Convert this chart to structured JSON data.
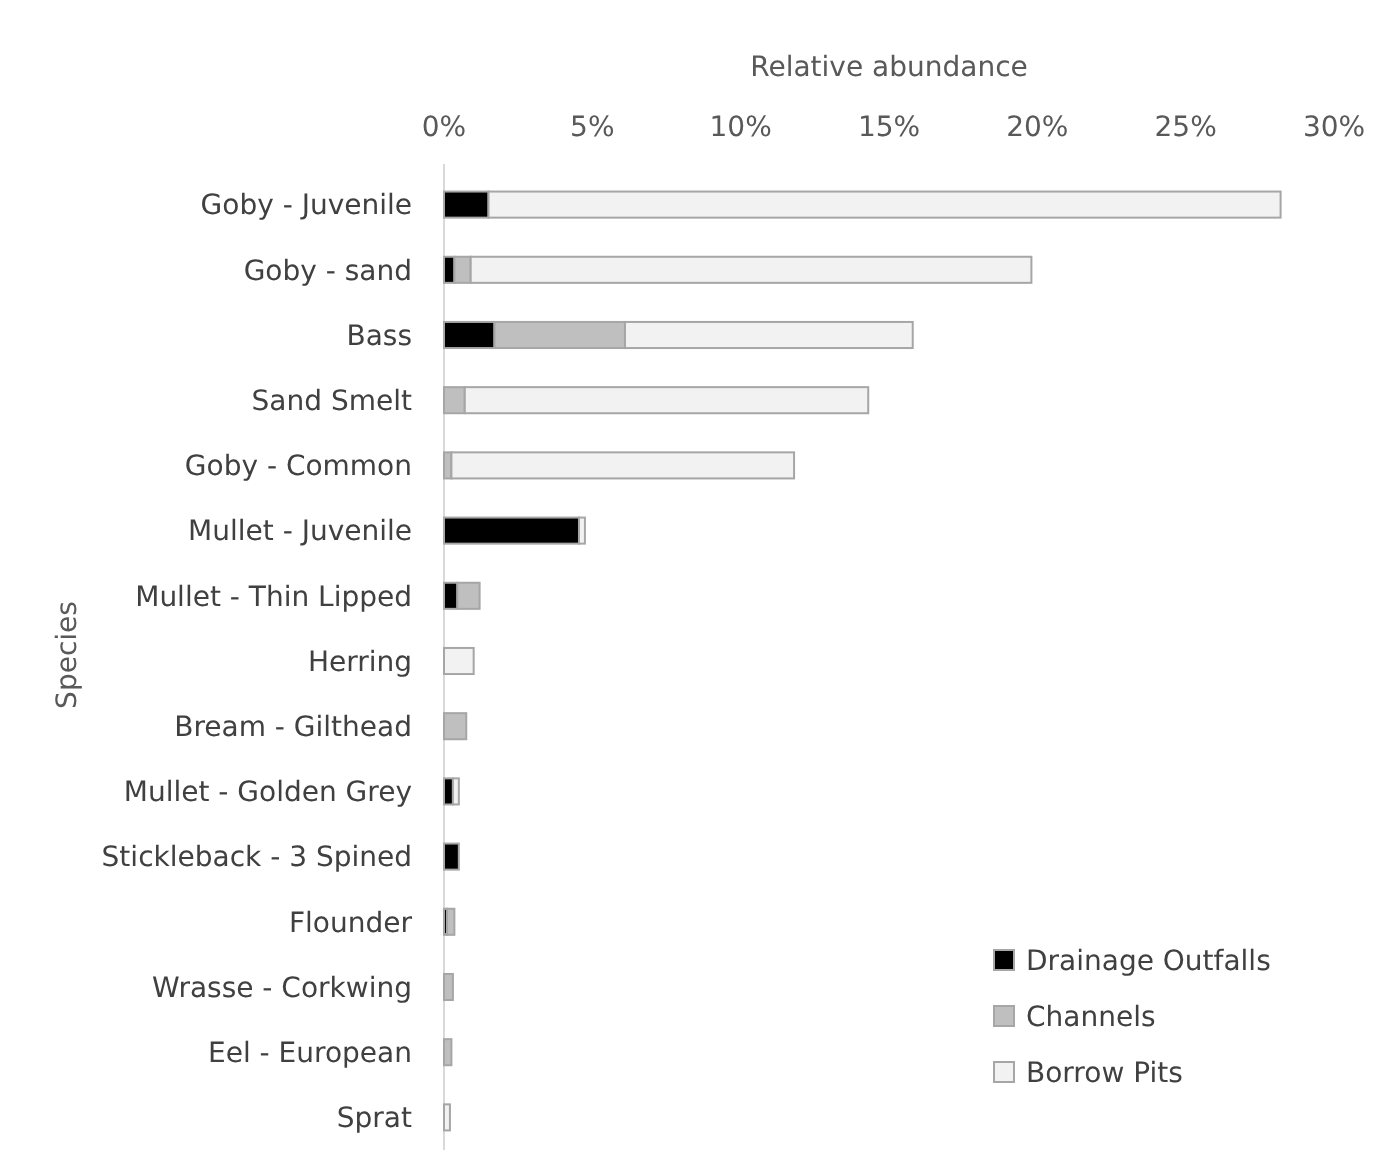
{
  "chart_data": {
    "type": "bar",
    "orientation": "horizontal",
    "stacked": true,
    "xlabel": "Relative abundance",
    "ylabel": "Species",
    "categories": [
      "Goby - Juvenile",
      "Goby - sand",
      "Bass",
      "Sand Smelt",
      "Goby - Common",
      "Mullet - Juvenile",
      "Mullet - Thin Lipped",
      "Herring",
      "Bream - Gilthead",
      "Mullet - Golden Grey",
      "Stickleback - 3 Spined",
      "Flounder",
      "Wrasse - Corkwing",
      "Eel - European",
      "Sprat"
    ],
    "series": [
      {
        "name": "Drainage Outfalls",
        "color": "#000000",
        "values": [
          1.5,
          0.35,
          1.7,
          0,
          0,
          4.55,
          0.45,
          0,
          0,
          0.3,
          0.5,
          0.1,
          0,
          0,
          0
        ]
      },
      {
        "name": "Channels",
        "color": "#bfbfbf",
        "values": [
          0,
          0.55,
          4.4,
          0.7,
          0.25,
          0,
          0.75,
          0,
          0.75,
          0,
          0,
          0.25,
          0.3,
          0.25,
          0
        ]
      },
      {
        "name": "Borrow Pits",
        "color": "#f2f2f2",
        "values": [
          26.7,
          18.9,
          9.7,
          13.6,
          11.55,
          0.2,
          0,
          1.0,
          0,
          0.2,
          0,
          0,
          0,
          0,
          0.2
        ]
      }
    ],
    "xlim": [
      0,
      30
    ],
    "xticks": [
      {
        "value": 0,
        "label": "0%"
      },
      {
        "value": 5,
        "label": "5%"
      },
      {
        "value": 10,
        "label": "10%"
      },
      {
        "value": 15,
        "label": "15%"
      },
      {
        "value": 20,
        "label": "20%"
      },
      {
        "value": 25,
        "label": "25%"
      },
      {
        "value": 30,
        "label": "30%"
      }
    ],
    "grid": false,
    "legend": "bottom right"
  }
}
